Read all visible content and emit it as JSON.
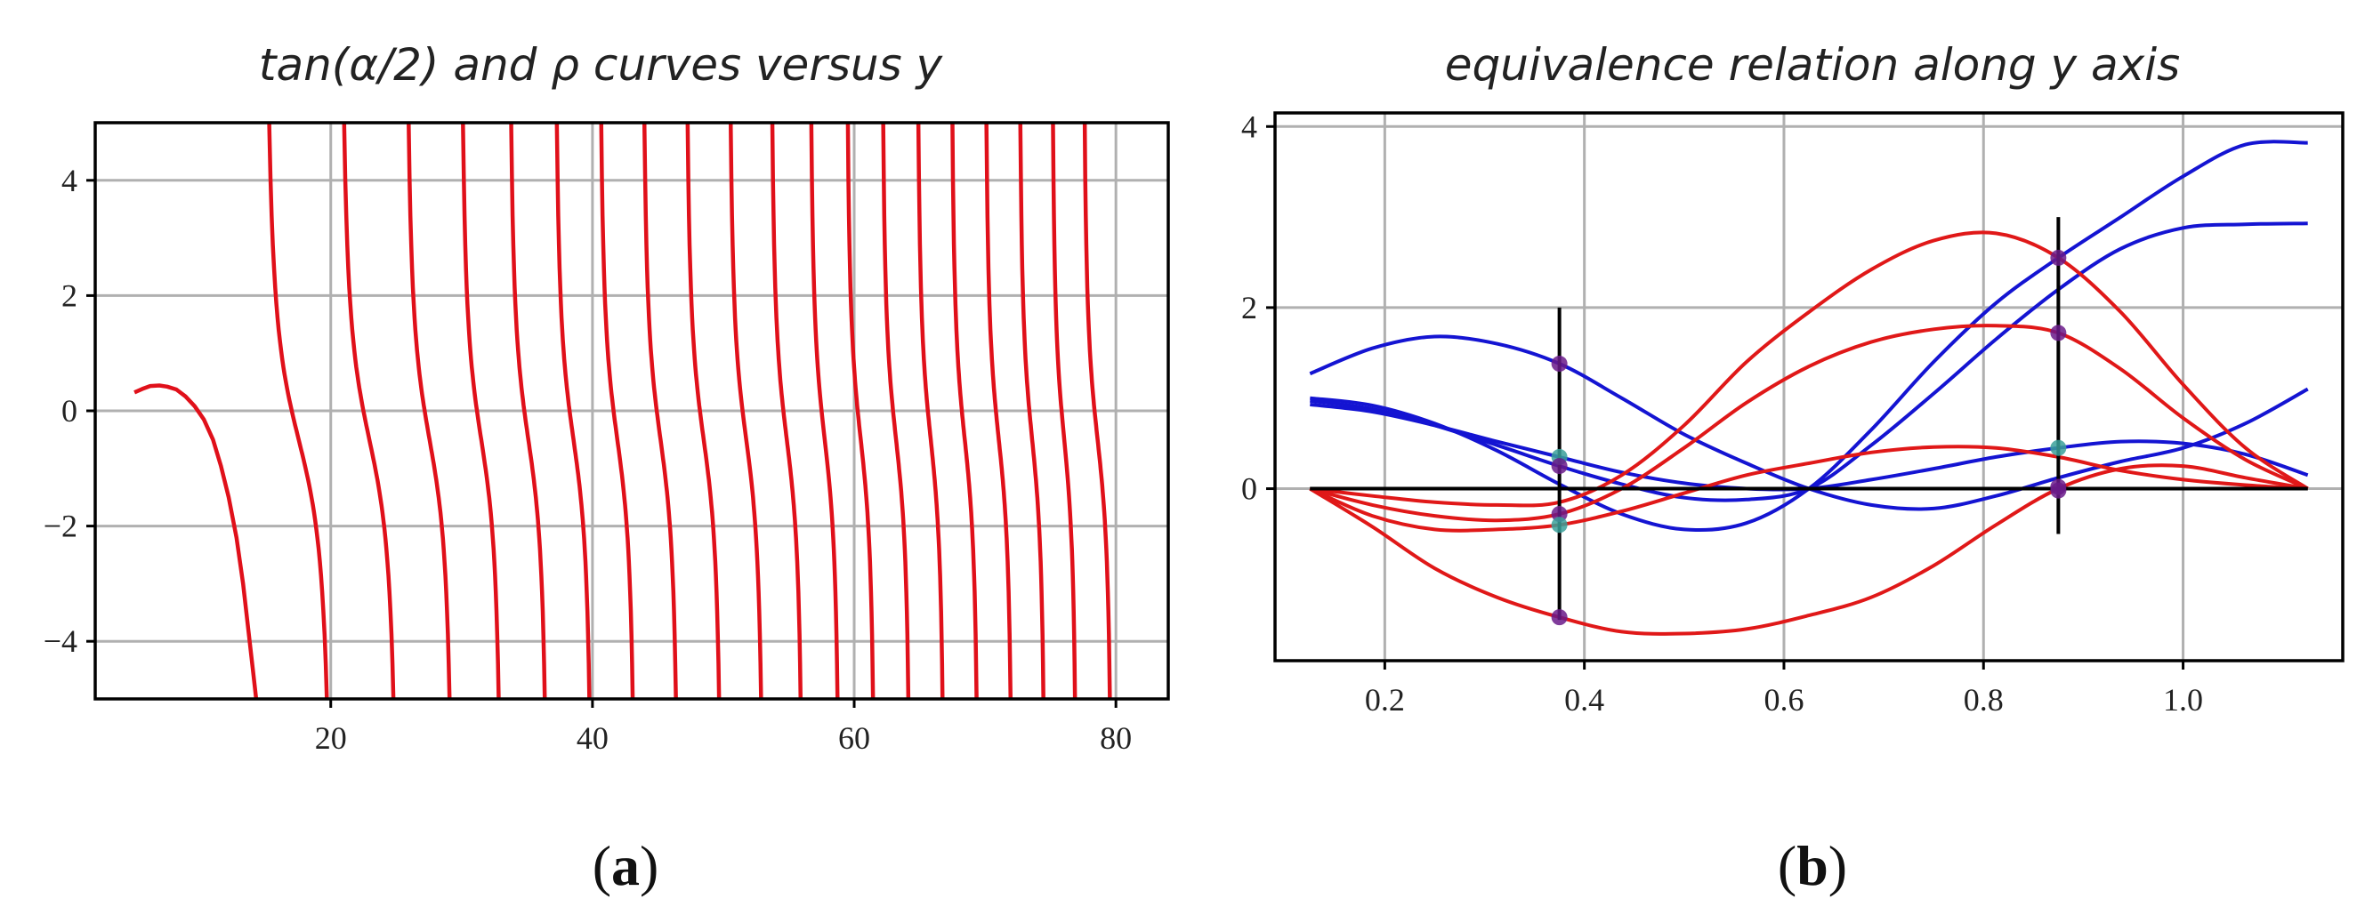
{
  "chart_data": [
    {
      "type": "line",
      "title": "tan(α/2) and ρ curves versus y",
      "xlabel": "",
      "ylabel": "",
      "xlim": [
        2,
        84
      ],
      "ylim": [
        -5,
        5
      ],
      "xticks": [
        20,
        40,
        60,
        80
      ],
      "xtick_labels": [
        "20",
        "40",
        "60",
        "80"
      ],
      "yticks": [
        -4,
        -2,
        0,
        2,
        4
      ],
      "ytick_labels": [
        "−4",
        "−2",
        "0",
        "2",
        "4"
      ],
      "grid": true,
      "color": "#e0101a",
      "series": [
        {
          "description": "first branch",
          "x": [
            5.0,
            5.6,
            6.2,
            6.9,
            7.5,
            8.2,
            8.9,
            9.6,
            10.3,
            11.0,
            11.6,
            12.2,
            12.8,
            13.3,
            13.7,
            14.1,
            14.3
          ],
          "y": [
            0.32,
            0.38,
            0.43,
            0.44,
            0.42,
            0.37,
            0.25,
            0.08,
            -0.15,
            -0.5,
            -0.95,
            -1.5,
            -2.2,
            -3.0,
            -3.8,
            -4.6,
            -5.0
          ]
        }
      ],
      "branch_starts": [
        14.8,
        20.6,
        25.6,
        29.8,
        33.5,
        37.0,
        40.4,
        43.7,
        47.0,
        50.3,
        53.5,
        56.5,
        59.3,
        62.0,
        64.7,
        67.3,
        69.9,
        72.5,
        75.0,
        77.4
      ],
      "branch_ends": [
        20.3,
        25.3,
        29.5,
        33.2,
        36.7,
        40.1,
        43.4,
        46.7,
        50.0,
        53.2,
        56.2,
        59.0,
        61.7,
        64.4,
        67.0,
        69.6,
        72.2,
        74.7,
        77.1,
        79.8
      ]
    },
    {
      "type": "line",
      "title": "equivalence relation along y axis",
      "xlabel": "",
      "ylabel": "",
      "xlim": [
        0.09,
        1.16
      ],
      "ylim": [
        -1.9,
        4.15
      ],
      "xticks": [
        0.2,
        0.4,
        0.6,
        0.8,
        1.0
      ],
      "xtick_labels": [
        "0.2",
        "0.4",
        "0.6",
        "0.8",
        "1.0"
      ],
      "yticks": [
        0,
        2,
        4
      ],
      "ytick_labels": [
        "0",
        "2",
        "4"
      ],
      "grid": true,
      "colors": {
        "blue": "#1414d2",
        "red": "#e01818",
        "black": "#000000",
        "marker": "#6a1a8a",
        "marker_alt": "#3aa09a"
      },
      "x": [
        0.125,
        0.1875,
        0.25,
        0.3125,
        0.375,
        0.4375,
        0.5,
        0.5625,
        0.625,
        0.6875,
        0.75,
        0.8125,
        0.875,
        0.9375,
        1.0,
        1.0625,
        1.125
      ],
      "series": [
        {
          "color": "blue",
          "values": [
            1.27,
            1.55,
            1.68,
            1.6,
            1.38,
            1.0,
            0.6,
            0.28,
            0.0,
            -0.18,
            -0.22,
            -0.08,
            0.12,
            0.3,
            0.45,
            0.72,
            1.1
          ]
        },
        {
          "color": "blue",
          "values": [
            1.0,
            0.92,
            0.72,
            0.42,
            0.05,
            -0.28,
            -0.45,
            -0.38,
            0.0,
            0.65,
            1.4,
            2.05,
            2.55,
            3.0,
            3.45,
            3.8,
            3.82
          ]
        },
        {
          "color": "blue",
          "values": [
            0.97,
            0.88,
            0.7,
            0.48,
            0.25,
            0.05,
            -0.1,
            -0.12,
            0.0,
            0.48,
            1.05,
            1.65,
            2.2,
            2.65,
            2.88,
            2.92,
            2.93
          ]
        },
        {
          "color": "blue",
          "values": [
            0.93,
            0.85,
            0.7,
            0.52,
            0.35,
            0.18,
            0.06,
            0.0,
            0.0,
            0.1,
            0.22,
            0.35,
            0.45,
            0.52,
            0.5,
            0.38,
            0.15
          ]
        },
        {
          "color": "red",
          "values": [
            0.0,
            -0.42,
            -0.88,
            -1.2,
            -1.42,
            -1.58,
            -1.6,
            -1.55,
            -1.4,
            -1.2,
            -0.85,
            -0.4,
            0.0,
            0.22,
            0.25,
            0.12,
            0.0
          ]
        },
        {
          "color": "red",
          "values": [
            0.0,
            -0.08,
            -0.15,
            -0.18,
            -0.15,
            0.15,
            0.7,
            1.4,
            1.95,
            2.42,
            2.74,
            2.82,
            2.55,
            1.95,
            1.15,
            0.45,
            0.0
          ]
        },
        {
          "color": "red",
          "values": [
            0.0,
            -0.18,
            -0.3,
            -0.35,
            -0.28,
            0.0,
            0.45,
            0.95,
            1.35,
            1.62,
            1.76,
            1.8,
            1.72,
            1.32,
            0.78,
            0.32,
            0.0
          ]
        },
        {
          "color": "red",
          "values": [
            0.0,
            -0.3,
            -0.45,
            -0.45,
            -0.4,
            -0.25,
            -0.05,
            0.15,
            0.28,
            0.4,
            0.46,
            0.45,
            0.35,
            0.2,
            0.1,
            0.04,
            0.0
          ]
        }
      ],
      "reference_lines": [
        {
          "kind": "horizontal",
          "y": 0,
          "x_from": 0.125,
          "x_to": 1.125,
          "color": "black"
        },
        {
          "kind": "vertical",
          "x": 0.375,
          "y_from": -1.45,
          "y_to": 2.0,
          "color": "black"
        },
        {
          "kind": "vertical",
          "x": 0.875,
          "y_from": -0.5,
          "y_to": 3.0,
          "color": "black"
        }
      ],
      "markers": [
        {
          "x": 0.375,
          "y": 1.38,
          "color": "marker"
        },
        {
          "x": 0.375,
          "y": 0.35,
          "color": "marker_alt"
        },
        {
          "x": 0.375,
          "y": 0.25,
          "color": "marker"
        },
        {
          "x": 0.375,
          "y": -0.28,
          "color": "marker"
        },
        {
          "x": 0.375,
          "y": -0.4,
          "color": "marker_alt"
        },
        {
          "x": 0.375,
          "y": -1.42,
          "color": "marker"
        },
        {
          "x": 0.875,
          "y": 2.55,
          "color": "marker"
        },
        {
          "x": 0.875,
          "y": 1.72,
          "color": "marker"
        },
        {
          "x": 0.875,
          "y": 0.45,
          "color": "marker_alt"
        },
        {
          "x": 0.875,
          "y": 0.02,
          "color": "marker"
        },
        {
          "x": 0.875,
          "y": -0.02,
          "color": "marker"
        }
      ]
    }
  ],
  "captions": {
    "left": {
      "open": "(",
      "letter": "a",
      "close": ")"
    },
    "right": {
      "open": "(",
      "letter": "b",
      "close": ")"
    }
  }
}
